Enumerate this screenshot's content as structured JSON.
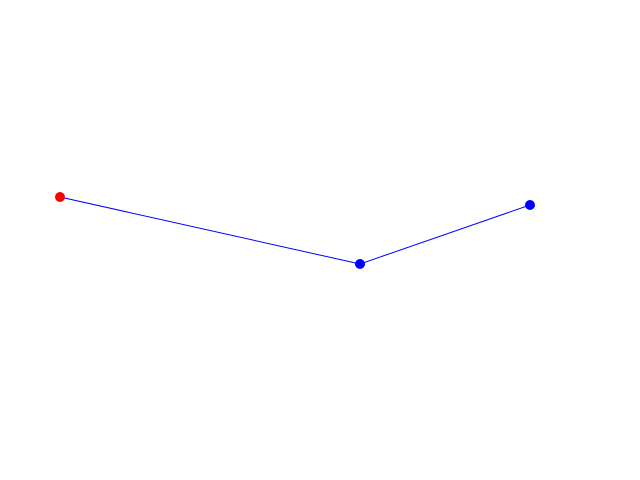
{
  "canvas": {
    "background": "#ffffff"
  },
  "edge_color": "#0000ff",
  "nodes": [
    {
      "id": "start",
      "color": "#ff0000"
    },
    {
      "id": "middle",
      "color": "#0000ff"
    },
    {
      "id": "end",
      "color": "#0000ff"
    }
  ],
  "edges": [
    {
      "from": "start",
      "to": "middle"
    },
    {
      "from": "middle",
      "to": "end"
    }
  ]
}
